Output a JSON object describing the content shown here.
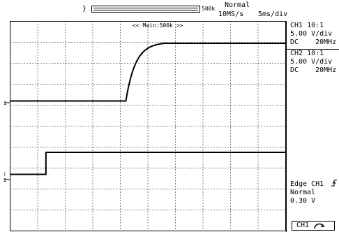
{
  "header": {
    "left_mark": "}",
    "memory_label": "500k",
    "trigger_mode": "Normal",
    "sample_rate": "10MS/s",
    "time_div": "5ms/div"
  },
  "screen": {
    "zoom_label": "<< Main:500k >>",
    "ch1_marker": "1",
    "ch2_marker": "2",
    "trigger_marker": "T",
    "grid": {
      "h_divisions": 10,
      "v_divisions": 10
    }
  },
  "channels": [
    {
      "name": "CH1 10:1",
      "scale": "5.00 V/div",
      "coupling": "DC",
      "bandwidth": "20MHz"
    },
    {
      "name": "CH2 10:1",
      "scale": "5.00 V/div",
      "coupling": "DC",
      "bandwidth": "20MHz"
    }
  ],
  "trigger": {
    "source": "Edge CH1",
    "mode": "Normal",
    "level": "0.30 V",
    "slope_icon": "rising-edge-icon"
  },
  "bottom_button": {
    "label": "CH1",
    "icon": "knob-icon"
  },
  "waveforms": {
    "ch1": {
      "low_div": 6.2,
      "high_div": 8.95,
      "step_time_div": 4.2,
      "rise_duration_div": 1.4
    },
    "ch2": {
      "low_div": 2.7,
      "high_div": 3.75,
      "step_time_div": 1.3
    }
  },
  "colors": {
    "trace": "#000000",
    "grid": "#000000",
    "background": "#ffffff"
  }
}
